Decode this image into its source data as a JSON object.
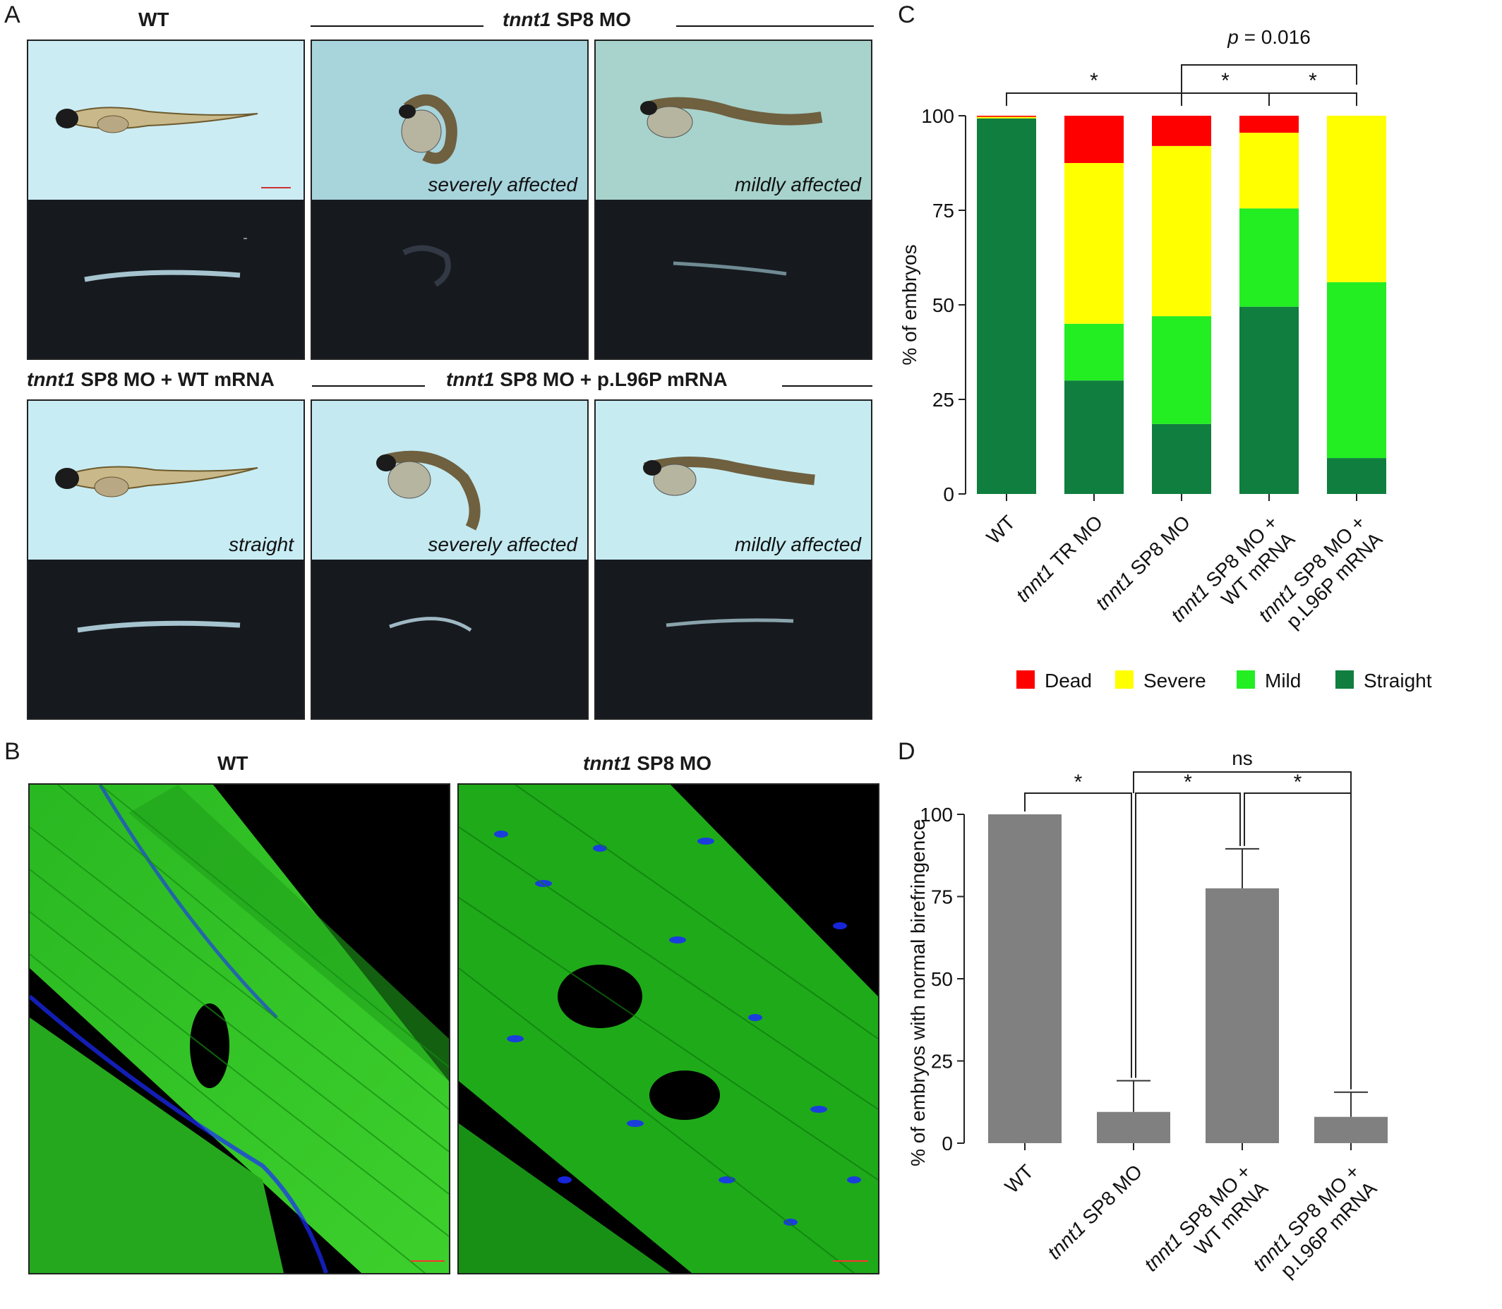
{
  "panel_labels": {
    "a": "A",
    "b": "B",
    "c": "C",
    "d": "D"
  },
  "panel_a": {
    "wt_title": "WT",
    "mo_title_gene": "tnnt1",
    "mo_title_rest": " SP8 MO",
    "wt_rescue_title_gene": "tnnt1",
    "wt_rescue_title_rest": " SP8 MO + WT mRNA",
    "mut_rescue_title_gene": "tnnt1",
    "mut_rescue_title_rest": " SP8 MO + p.L96P mRNA",
    "captions": {
      "top_middle": "severely affected",
      "top_right": "mildly affected",
      "bottom_left": "straight",
      "bottom_middle": "severely affected",
      "bottom_right": "mildly affected"
    }
  },
  "panel_b": {
    "wt_title": "WT",
    "mo_title_gene": "tnnt1",
    "mo_title_rest": " SP8 MO"
  },
  "colors": {
    "dead": "#ff0000",
    "severe": "#ffff00",
    "mild": "#22ee22",
    "straight": "#0f7e3f",
    "bar_gray": "#808080",
    "muscle_green": "#1fb31a",
    "nuclei_blue": "#1a2bff"
  },
  "chart_data": [
    {
      "type": "bar",
      "stacked": true,
      "panel": "C",
      "categories": [
        [
          "WT"
        ],
        [
          "tnnt1 TR MO"
        ],
        [
          "tnnt1 SP8 MO"
        ],
        [
          "tnnt1 SP8 MO +",
          "WT mRNA"
        ],
        [
          "tnnt1 SP8 MO +",
          "p.L96P mRNA"
        ]
      ],
      "series": [
        {
          "name": "Straight",
          "values": [
            99.3,
            30,
            18.5,
            49.5,
            9.5
          ]
        },
        {
          "name": "Mild",
          "values": [
            0,
            15,
            28.5,
            26,
            46.5
          ]
        },
        {
          "name": "Severe",
          "values": [
            0.4,
            42.5,
            45,
            20,
            44
          ]
        },
        {
          "name": "Dead",
          "values": [
            0.3,
            12.5,
            8,
            4.5,
            0
          ]
        }
      ],
      "ylabel": "% of embryos",
      "ylim": [
        0,
        100
      ],
      "yticks": [
        "0",
        "25",
        "50",
        "75",
        "100"
      ],
      "legend": [
        "Dead",
        "Severe",
        "Mild",
        "Straight"
      ],
      "legend_position": "bottom",
      "annotations": [
        {
          "text": "*",
          "from": 0,
          "to": 2
        },
        {
          "text": "*",
          "from": 2,
          "to": 3
        },
        {
          "text": "*",
          "from": 3,
          "to": 4
        },
        {
          "text": "p = 0.016",
          "from": 2,
          "to": 4
        }
      ]
    },
    {
      "type": "bar",
      "panel": "D",
      "categories": [
        [
          "WT"
        ],
        [
          "tnnt1 SP8 MO"
        ],
        [
          "tnnt1 SP8 MO +",
          "WT mRNA"
        ],
        [
          "tnnt1 SP8 MO +",
          "p.L96P mRNA"
        ]
      ],
      "values": [
        100,
        9.5,
        77.5,
        8
      ],
      "errors": [
        0,
        9.5,
        12,
        7.5
      ],
      "ylabel": "% of embryos with normal birefringence",
      "ylim": [
        0,
        100
      ],
      "yticks": [
        "0",
        "25",
        "50",
        "75",
        "100"
      ],
      "annotations": [
        {
          "text": "*",
          "from": 0,
          "to": 1
        },
        {
          "text": "*",
          "from": 1,
          "to": 2
        },
        {
          "text": "*",
          "from": 2,
          "to": 3
        },
        {
          "text": "ns",
          "from": 1,
          "to": 3
        }
      ]
    }
  ]
}
